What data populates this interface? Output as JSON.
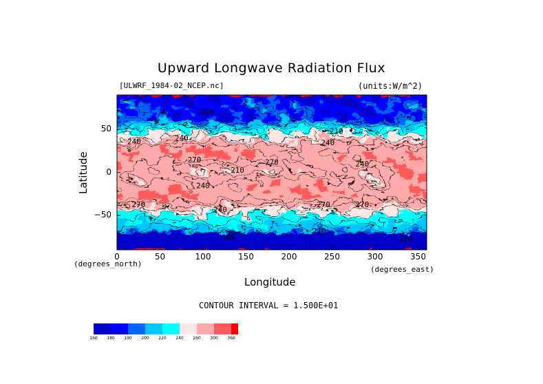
{
  "chart_data": {
    "type": "heatmap",
    "title": "Upward Longwave Radiation Flux",
    "dataset_label": "[ULWRF_1984-02_NCEP.nc]",
    "units_label": "(units:W/m^2)",
    "xlabel": "Longitude",
    "ylabel": "Latitude",
    "x_units_label": "(degrees_east)",
    "y_units_label": "(degrees_north)",
    "xlim": [
      0,
      360
    ],
    "ylim": [
      -90,
      90
    ],
    "x_ticks": [
      0,
      50,
      100,
      150,
      200,
      250,
      300,
      350
    ],
    "y_ticks": [
      50,
      0,
      -50
    ],
    "contour_interval_text": "CONTOUR INTERVAL = 1.500E+01",
    "colorbar_levels": [
      160,
      180,
      190,
      200,
      220,
      240,
      260,
      300,
      360
    ],
    "colorbar_colors": [
      "#0000c8",
      "#0000ff",
      "#0064ff",
      "#00c8ff",
      "#00ffff",
      "#ffe6e6",
      "#ffaaaa",
      "#ff5a5a",
      "#ff0000"
    ],
    "contour_labels": [
      {
        "lon": 20,
        "lat": 36,
        "text": "240"
      },
      {
        "lon": 75,
        "lat": 40,
        "text": "240"
      },
      {
        "lon": 90,
        "lat": 15,
        "text": "270"
      },
      {
        "lon": 105,
        "lat": 70,
        "text": "210"
      },
      {
        "lon": 140,
        "lat": 3,
        "text": "210"
      },
      {
        "lon": 180,
        "lat": 12,
        "text": "270"
      },
      {
        "lon": 245,
        "lat": 35,
        "text": "240"
      },
      {
        "lon": 255,
        "lat": 48,
        "text": "210"
      },
      {
        "lon": 100,
        "lat": -15,
        "text": "240"
      },
      {
        "lon": 25,
        "lat": -37,
        "text": "270"
      },
      {
        "lon": 120,
        "lat": -43,
        "text": "240"
      },
      {
        "lon": 240,
        "lat": -37,
        "text": "270"
      },
      {
        "lon": 285,
        "lat": -37,
        "text": "270"
      },
      {
        "lon": 235,
        "lat": -68,
        "text": "210"
      },
      {
        "lon": 130,
        "lat": -75,
        "text": "180"
      },
      {
        "lon": 335,
        "lat": -77,
        "text": "210"
      },
      {
        "lon": 285,
        "lat": 10,
        "text": "240"
      }
    ]
  }
}
